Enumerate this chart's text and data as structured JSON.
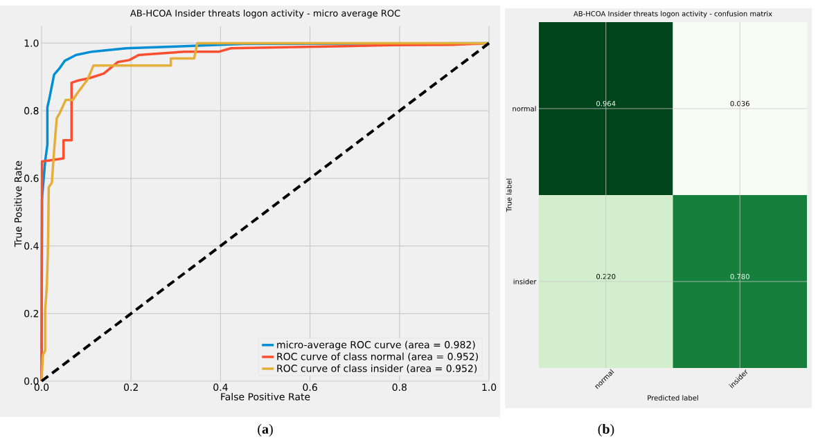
{
  "chart_data": [
    {
      "type": "line",
      "title": "AB-HCOA Insider threats logon activity -  micro average ROC",
      "xlabel": "False Positive Rate",
      "ylabel": "True Positive Rate",
      "xlim": [
        0,
        1.0
      ],
      "ylim": [
        0,
        1.05
      ],
      "xticks": [
        {
          "value": 0,
          "label": "0.0"
        },
        0.2,
        0.4,
        0.6,
        0.8,
        {
          "value": 1,
          "label": "1.0"
        }
      ],
      "yticks": [
        {
          "value": 0,
          "label": "0.0"
        },
        0.2,
        0.4,
        0.6,
        0.8,
        {
          "value": 1,
          "label": "1.0"
        }
      ],
      "grid": true,
      "legend": "bottom right",
      "annotations": [
        "(**a**)"
      ],
      "series": [
        {
          "name": "micro-average ROC curve (area = 0.982)",
          "color": "#008fd5",
          "x": [
            0.0,
            0.001,
            0.008,
            0.013,
            0.013,
            0.018,
            0.028,
            0.041,
            0.052,
            0.077,
            0.113,
            0.19,
            0.3,
            0.45,
            1.0
          ],
          "values": [
            0.0,
            0.54,
            0.65,
            0.7,
            0.81,
            0.84,
            0.907,
            0.927,
            0.948,
            0.965,
            0.975,
            0.985,
            0.99,
            0.998,
            1.0
          ]
        },
        {
          "name": "ROC curve of class normal (area = 0.952)",
          "color": "#fc4f30",
          "x": [
            0.0,
            0.001,
            0.049,
            0.049,
            0.067,
            0.067,
            0.083,
            0.108,
            0.139,
            0.17,
            0.196,
            0.217,
            0.32,
            0.397,
            0.423,
            0.784,
            0.918,
            1.0
          ],
          "values": [
            0.0,
            0.65,
            0.659,
            0.713,
            0.713,
            0.883,
            0.89,
            0.897,
            0.91,
            0.944,
            0.95,
            0.965,
            0.975,
            0.975,
            0.985,
            0.994,
            0.995,
            1.0
          ]
        },
        {
          "name": "ROC curve of class insider (area = 0.952)",
          "color": "#e5ae38",
          "x": [
            0.0,
            0.003,
            0.008,
            0.008,
            0.01,
            0.012,
            0.014,
            0.015,
            0.016,
            0.023,
            0.028,
            0.034,
            0.041,
            0.054,
            0.07,
            0.08,
            0.103,
            0.116,
            0.289,
            0.289,
            0.341,
            0.348,
            1.0
          ],
          "values": [
            0.0,
            0.077,
            0.09,
            0.21,
            0.247,
            0.288,
            0.376,
            0.445,
            0.573,
            0.587,
            0.682,
            0.778,
            0.794,
            0.832,
            0.832,
            0.852,
            0.893,
            0.934,
            0.934,
            0.955,
            0.955,
            1.0,
            1.0
          ]
        },
        {
          "color": "#000000",
          "line_style": "dashed",
          "x": [
            0,
            1
          ],
          "values": [
            0,
            1
          ]
        }
      ]
    },
    {
      "type": "heatmap",
      "title": "AB-HCOA Insider threats logon activity -  confusion matrix",
      "xlabel": "Predicted label",
      "ylabel": "True label",
      "categories": [
        "normal",
        "insider"
      ],
      "y_categories": [
        "normal",
        "insider"
      ],
      "cells": [
        [
          0.964,
          0.036
        ],
        [
          0.22,
          0.78
        ]
      ],
      "cell_labels": [
        [
          "0.964",
          "0.036"
        ],
        [
          "0.220",
          "0.780"
        ]
      ],
      "grid": true,
      "annotations": [
        "(**b**)"
      ]
    }
  ]
}
